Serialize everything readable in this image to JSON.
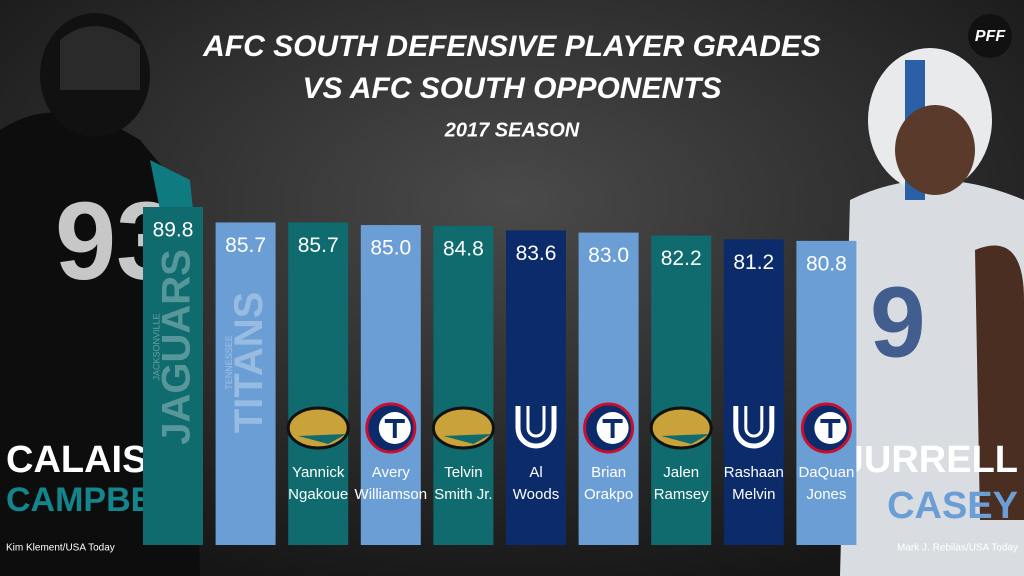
{
  "chart_data": {
    "type": "bar",
    "logo": "PFF",
    "title": [
      "AFC SOUTH DEFENSIVE PLAYER GRADES",
      "VS AFC SOUTH OPPONENTS"
    ],
    "subtitle": "2017 SEASON",
    "categories": [
      null,
      null,
      [
        "Yannick",
        "Ngakoue"
      ],
      [
        "Avery",
        "Williamson"
      ],
      [
        "Telvin",
        "Smith Jr."
      ],
      [
        "Al",
        "Woods"
      ],
      [
        "Brian",
        "Orakpo"
      ],
      [
        "Jalen",
        "Ramsey"
      ],
      [
        "Rashaan",
        "Melvin"
      ],
      [
        "DaQuan",
        "Jones"
      ]
    ],
    "values": [
      89.8,
      85.7,
      85.7,
      85.0,
      84.8,
      83.6,
      83.0,
      82.2,
      81.2,
      80.8
    ],
    "value_labels": [
      "89.8",
      "85.7",
      "85.7",
      "85.0",
      "84.8",
      "83.6",
      "83.0",
      "82.2",
      "81.2",
      "80.8"
    ],
    "colors": [
      "#0f6b6e",
      "#6c9ed6",
      "#0f6b6e",
      "#6c9ed6",
      "#0f6b6e",
      "#0b2b6b",
      "#6c9ed6",
      "#0f6b6e",
      "#0b2b6b",
      "#6c9ed6"
    ],
    "team_labels": [
      [
        "JACKSONVILLE",
        "JAGUARS"
      ],
      [
        "TENNESSEE",
        "TITANS"
      ]
    ],
    "players": [
      {
        "first": "CALAIS",
        "last": "CAMPBELL",
        "credit": "Kim Klement/USA Today"
      },
      {
        "first": "JURRELL",
        "last": "CASEY",
        "credit": "Mark J. Rebilas/USA Today"
      }
    ]
  }
}
